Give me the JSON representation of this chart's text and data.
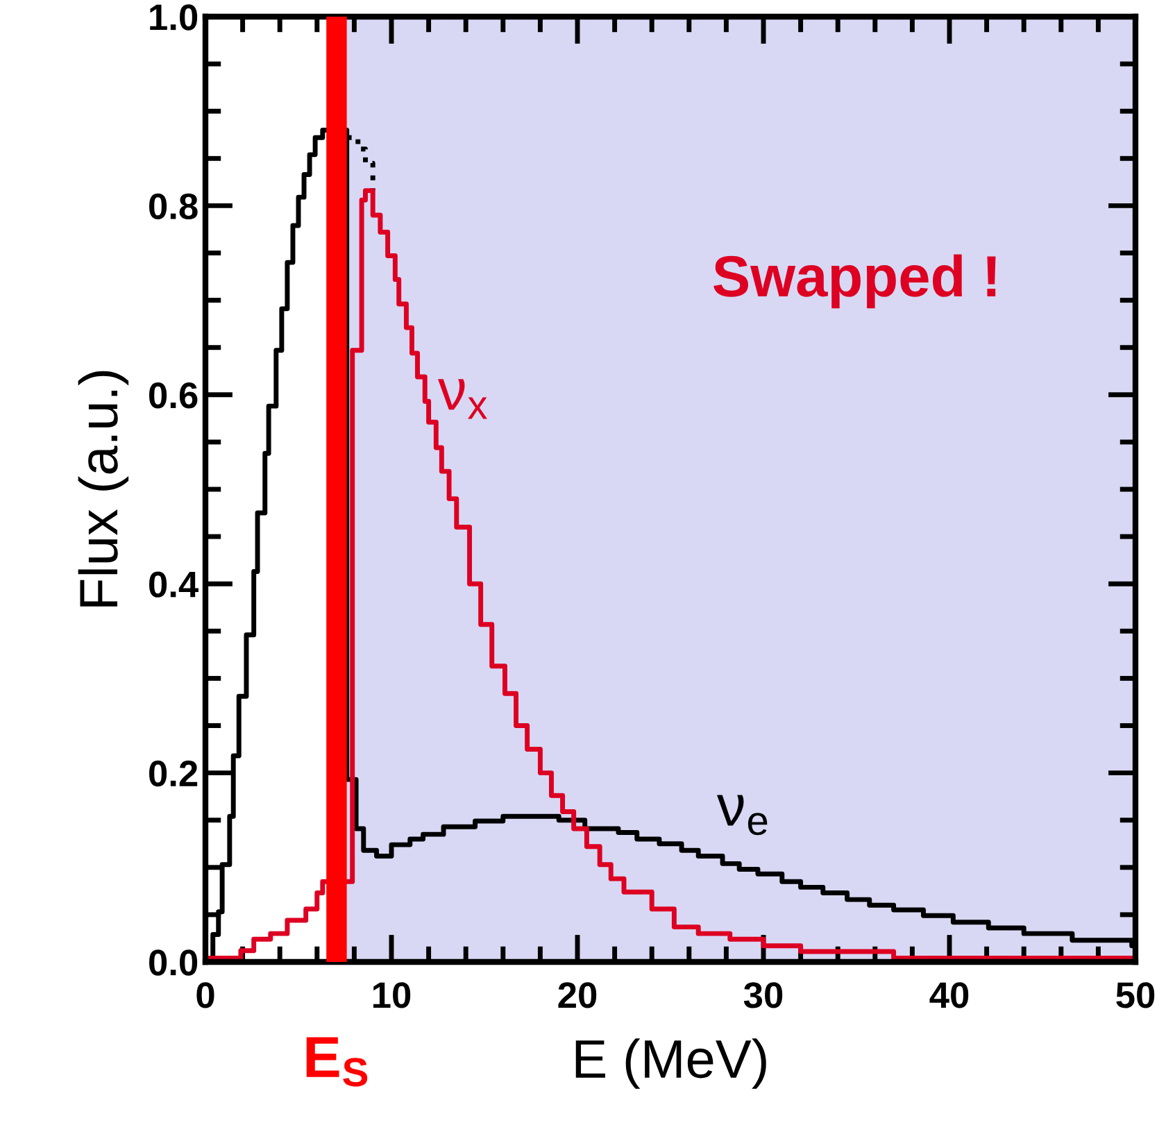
{
  "chart_data": {
    "type": "step",
    "xlabel": "E (MeV)",
    "ylabel": "Flux (a.u.)",
    "xlim": [
      0,
      50
    ],
    "ylim": [
      0,
      1.0
    ],
    "xticks": [
      0,
      {
        "value": 2,
        "label": null
      },
      {
        "value": 4,
        "label": null
      },
      {
        "value": 6,
        "label": null
      },
      {
        "value": 8,
        "label": null
      },
      10,
      {
        "value": 12,
        "label": null
      },
      {
        "value": 14,
        "label": null
      },
      {
        "value": 16,
        "label": null
      },
      {
        "value": 18,
        "label": null
      },
      20,
      {
        "value": 22,
        "label": null
      },
      {
        "value": 24,
        "label": null
      },
      {
        "value": 26,
        "label": null
      },
      {
        "value": 28,
        "label": null
      },
      30,
      {
        "value": 32,
        "label": null
      },
      {
        "value": 34,
        "label": null
      },
      {
        "value": 36,
        "label": null
      },
      {
        "value": 38,
        "label": null
      },
      40,
      {
        "value": 42,
        "label": null
      },
      {
        "value": 44,
        "label": null
      },
      {
        "value": 46,
        "label": null
      },
      {
        "value": 48,
        "label": null
      },
      50
    ],
    "yticks": [
      {
        "value": 0,
        "label": "0.0"
      },
      {
        "value": 0.05,
        "label": null
      },
      {
        "value": 0.1,
        "label": null
      },
      {
        "value": 0.15,
        "label": null
      },
      0.2,
      {
        "value": 0.25,
        "label": null
      },
      {
        "value": 0.3,
        "label": null
      },
      {
        "value": 0.35,
        "label": null
      },
      0.4,
      {
        "value": 0.45,
        "label": null
      },
      {
        "value": 0.5,
        "label": null
      },
      {
        "value": 0.55,
        "label": null
      },
      0.6,
      {
        "value": 0.65,
        "label": null
      },
      {
        "value": 0.7,
        "label": null
      },
      {
        "value": 0.75,
        "label": null
      },
      0.8,
      {
        "value": 0.85,
        "label": null
      },
      {
        "value": 0.9,
        "label": null
      },
      {
        "value": 0.95,
        "label": null
      },
      {
        "value": 1.0,
        "label": "1.0"
      }
    ],
    "grid": false,
    "bands": [
      {
        "axis": "x",
        "from": 7.6,
        "to": 50,
        "color": "#d8d8f4"
      },
      {
        "axis": "x",
        "from": 6.5,
        "to": 7.6,
        "color": "#ff0000",
        "label": "E$_{S}$"
      }
    ],
    "series": [
      {
        "color": "#000000",
        "x": [
          0.15,
          0.4,
          0.7,
          0.9,
          1.3,
          1.5,
          1.8,
          2.2,
          2.6,
          2.8,
          3.2,
          3.4,
          3.8,
          4.1,
          4.4,
          4.7,
          5.0,
          5.3,
          5.6,
          5.9,
          6.3,
          7.6,
          7.6,
          8.1,
          8.5,
          9.2,
          10,
          11,
          11.7,
          12.8,
          14.5,
          16,
          19,
          20.4,
          22.2,
          23.2,
          24.4,
          25.6,
          26.5,
          27.8,
          28.7,
          29.7,
          31,
          32,
          33.2,
          34.5,
          35.7,
          37,
          38.6,
          40.2,
          42.1,
          44,
          46.6,
          49.8,
          50
        ],
        "values": [
          0,
          0.029,
          0.053,
          0.103,
          0.154,
          0.218,
          0.281,
          0.346,
          0.413,
          0.475,
          0.538,
          0.588,
          0.647,
          0.691,
          0.74,
          0.779,
          0.809,
          0.833,
          0.854,
          0.872,
          0.88,
          0.509,
          0.193,
          0.141,
          0.118,
          0.112,
          0.124,
          0.13,
          0.135,
          0.143,
          0.149,
          0.154,
          0.15,
          0.141,
          0.137,
          0.13,
          0.125,
          0.118,
          0.112,
          0.104,
          0.098,
          0.093,
          0.085,
          0.079,
          0.073,
          0.066,
          0.06,
          0.055,
          0.049,
          0.042,
          0.036,
          0.03,
          0.023,
          0.017,
          0.017
        ]
      },
      {
        "color": "#000000",
        "line_style": "dotted",
        "x": [
          7.6,
          8.2,
          8.6,
          9.0
        ],
        "values": [
          0.872,
          0.86,
          0.845,
          0.816
        ]
      },
      {
        "color": "#dd0022",
        "x": [
          0,
          1.9,
          2.6,
          3.5,
          4.4,
          5.4,
          6.0,
          6.3,
          7.9,
          7.9,
          8.4,
          8.6,
          9.0,
          9.4,
          9.8,
          10.2,
          10.4,
          10.8,
          11.1,
          11.4,
          11.8,
          12.0,
          12.4,
          12.7,
          13.1,
          13.5,
          14.2,
          14.8,
          15.4,
          16.1,
          16.7,
          17.3,
          18.0,
          18.6,
          19.2,
          19.8,
          20.5,
          21.2,
          21.8,
          22.5,
          24,
          25.2,
          26.5,
          28.2,
          30,
          32,
          37,
          50
        ],
        "values": [
          0.004,
          0.012,
          0.024,
          0.03,
          0.044,
          0.056,
          0.073,
          0.085,
          0.092,
          0.647,
          0.806,
          0.816,
          0.79,
          0.772,
          0.747,
          0.722,
          0.696,
          0.671,
          0.644,
          0.619,
          0.593,
          0.571,
          0.544,
          0.519,
          0.49,
          0.46,
          0.4,
          0.357,
          0.313,
          0.284,
          0.25,
          0.225,
          0.2,
          0.176,
          0.159,
          0.141,
          0.122,
          0.103,
          0.088,
          0.074,
          0.056,
          0.037,
          0.03,
          0.024,
          0.017,
          0.011,
          0.004,
          0
        ]
      }
    ],
    "annotations": [
      "ν$_{x}$",
      "ν$_{e}$",
      "Swapped !"
    ]
  }
}
